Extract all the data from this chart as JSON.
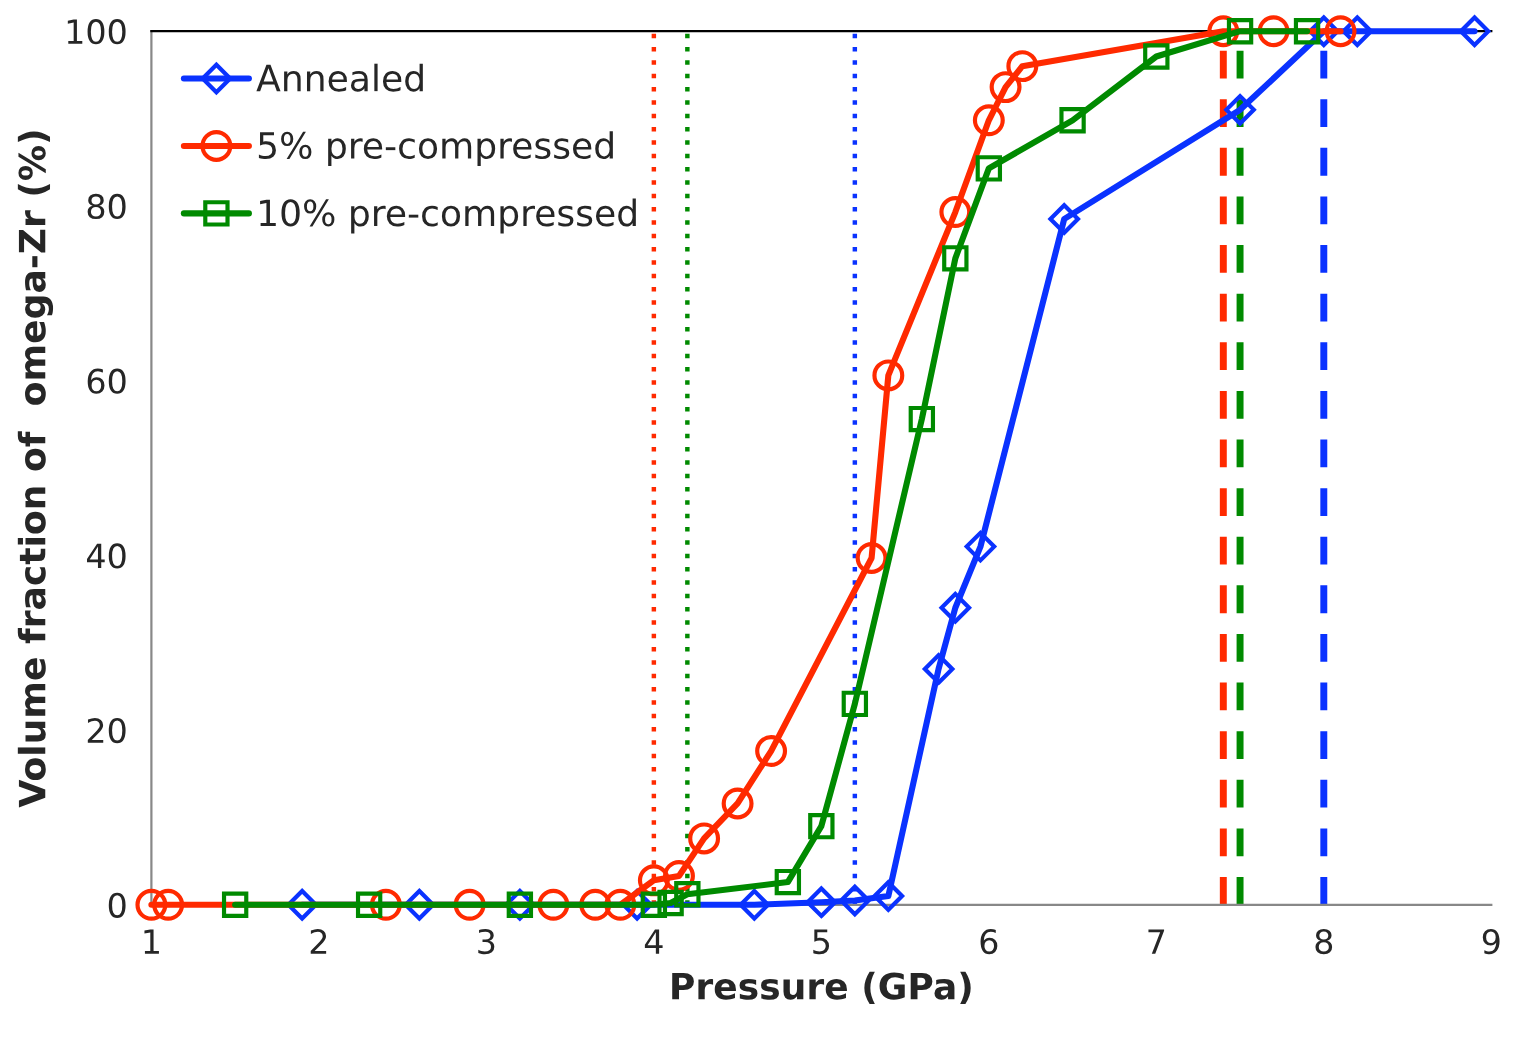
{
  "chart_data": {
    "type": "line",
    "xlabel": "Pressure (GPa)",
    "ylabel": "Volume fraction of  omega-Zr (%)",
    "xlim": [
      1,
      9
    ],
    "ylim": [
      0,
      100
    ],
    "xticks": [
      1,
      2,
      3,
      4,
      5,
      6,
      7,
      8,
      9
    ],
    "yticks": [
      0,
      20,
      40,
      60,
      80,
      100
    ],
    "grid": false,
    "legend": "top left",
    "line_style": "solid",
    "series": [
      {
        "name": "Annealed",
        "color": "#0a32ff",
        "marker": "diamond",
        "x": [
          1.9,
          2.6,
          3.2,
          3.9,
          4.6,
          5.0,
          5.2,
          5.4,
          5.7,
          5.8,
          5.95,
          6.45,
          7.5,
          8.0,
          8.2,
          8.9
        ],
        "values": [
          0,
          0,
          0,
          0,
          0,
          0.3,
          0.5,
          1,
          27,
          34,
          41,
          78.5,
          91,
          100,
          100,
          100
        ]
      },
      {
        "name": "5% pre-compressed",
        "color": "#ff2a00",
        "marker": "circle",
        "x": [
          1.0,
          1.1,
          2.4,
          2.9,
          3.4,
          3.65,
          3.8,
          4.0,
          4.15,
          4.3,
          4.5,
          4.7,
          5.3,
          5.4,
          5.8,
          6.0,
          6.1,
          6.2,
          7.4,
          7.7,
          8.1
        ],
        "values": [
          0,
          0,
          0,
          0,
          0,
          0,
          0,
          2.8,
          3.3,
          7.6,
          11.6,
          17.6,
          39.7,
          60.6,
          79.3,
          89.8,
          93.6,
          96,
          100,
          100,
          100
        ]
      },
      {
        "name": "10% pre-compressed",
        "color": "#008a00",
        "marker": "square",
        "x": [
          1.5,
          2.3,
          3.2,
          4.0,
          4.1,
          4.2,
          4.8,
          5.0,
          5.2,
          5.6,
          5.8,
          6.0,
          6.5,
          7.0,
          7.5,
          7.9
        ],
        "values": [
          0,
          0,
          0,
          0,
          0.2,
          1.2,
          2.6,
          9,
          23,
          55.6,
          74,
          84.3,
          89.8,
          97.1,
          100,
          100
        ]
      }
    ],
    "ref_lines": [
      {
        "axis": "x",
        "value": 4.0,
        "color": "#ff2a00",
        "line_style": "dotted"
      },
      {
        "axis": "x",
        "value": 4.2,
        "color": "#008a00",
        "line_style": "dotted"
      },
      {
        "axis": "x",
        "value": 5.2,
        "color": "#0a32ff",
        "line_style": "dotted"
      },
      {
        "axis": "x",
        "value": 7.4,
        "color": "#ff2a00",
        "line_style": "dashed"
      },
      {
        "axis": "x",
        "value": 7.5,
        "color": "#008a00",
        "line_style": "dashed"
      },
      {
        "axis": "x",
        "value": 8.0,
        "color": "#0a32ff",
        "line_style": "dashed"
      }
    ]
  }
}
